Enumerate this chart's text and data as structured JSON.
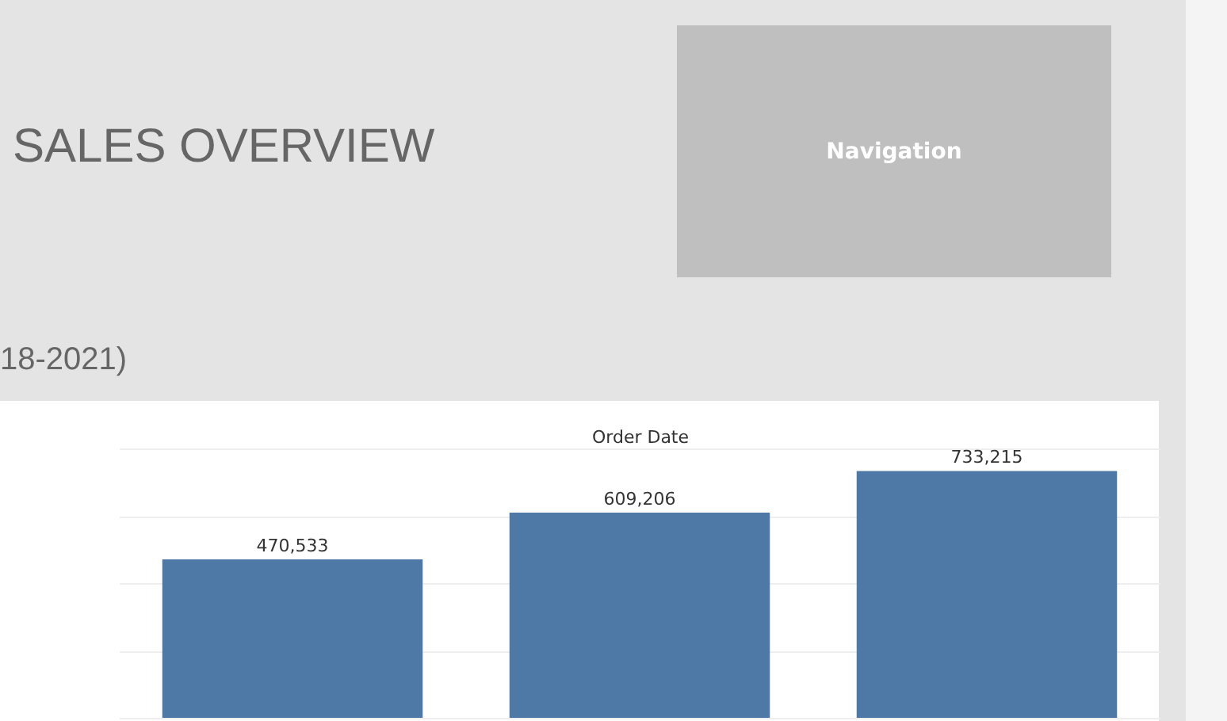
{
  "chart_data": {
    "type": "bar",
    "title": "SALES OVERVIEW",
    "subtitle": "18-2021)",
    "xlabel": "Order Date",
    "categories": [
      null,
      null,
      null
    ],
    "values": [
      470533,
      609206,
      733215
    ],
    "color": "#4e79a7",
    "value_labels": [
      "470,533",
      "609,206",
      "733,215"
    ],
    "grid": "y",
    "tick_labels": false,
    "annotations": [
      "Navigation"
    ]
  }
}
